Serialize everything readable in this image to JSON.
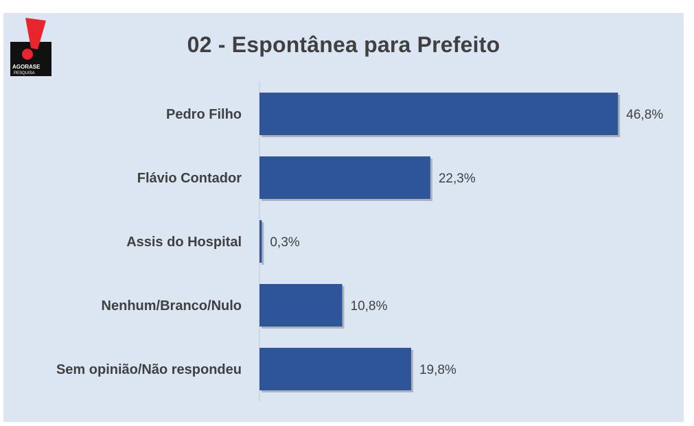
{
  "logo": {
    "brand_top": "AGORASE",
    "brand_bottom": "PESQUISA",
    "accent_color": "#e8242c"
  },
  "chart_data": {
    "type": "bar",
    "orientation": "horizontal",
    "title": "02 - Espontânea para Prefeito",
    "categories": [
      "Pedro Filho",
      "Flávio Contador",
      "Assis do Hospital",
      "Nenhum/Branco/Nulo",
      "Sem opinião/Não respondeu"
    ],
    "values": [
      46.8,
      22.3,
      0.3,
      10.8,
      19.8
    ],
    "value_labels": [
      "46,8%",
      "22,3%",
      "0,3%",
      "10,8%",
      "19,8%"
    ],
    "xlim": [
      0,
      50
    ],
    "bar_color": "#2e5597",
    "grid": false,
    "legend": "none"
  }
}
